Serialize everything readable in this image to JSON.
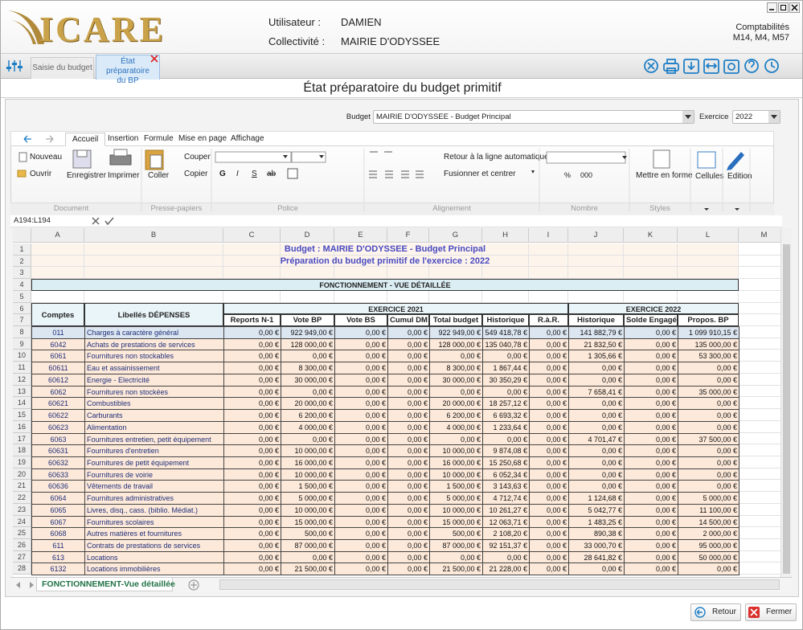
{
  "header": {
    "logo": "ICARE",
    "user_label": "Utilisateur :",
    "user": "DAMIEN",
    "collectivity_label": "Collectivité :",
    "collectivity": "MAIRIE D'ODYSSEE",
    "module_title": "Comptabilités",
    "module_versions": "M14, M4, M57"
  },
  "tabs": [
    "Saisie du budget",
    "État préparatoire du BP"
  ],
  "page_title": "État préparatoire du budget primitif",
  "budget": {
    "label": "Budget",
    "value": "MAIRIE D'ODYSSEE - Budget Principal",
    "exercise_label": "Exercice",
    "exercise": "2022"
  },
  "ribbon": {
    "tabs": [
      "Accueil",
      "Insertion",
      "Formule",
      "Mise en page",
      "Affichage"
    ],
    "active_tab": 0,
    "buttons": {
      "new": "Nouveau",
      "open": "Ouvrir",
      "save": "Enregistrer",
      "print": "Imprimer",
      "paste": "Coller",
      "cut": "Couper",
      "copy": "Copier",
      "bold": "G",
      "italic": "I",
      "underline": "S",
      "strike": "ab",
      "wrap": "Retour à la ligne automatique",
      "merge": "Fusionner et centrer",
      "percent": "%",
      "thousands": "000",
      "format": "Mettre en forme",
      "cells": "Cellules",
      "edit": "Edition"
    },
    "groups": [
      "Document",
      "Presse-papiers",
      "Police",
      "Alignement",
      "Nombre",
      "Styles"
    ]
  },
  "formula_bar": {
    "cell_ref": "A194:L194"
  },
  "sheet": {
    "columns": [
      "A",
      "B",
      "C",
      "D",
      "E",
      "F",
      "G",
      "H",
      "I",
      "J",
      "K",
      "L",
      "M"
    ],
    "row_numbers": [
      1,
      2,
      3,
      4,
      5,
      6,
      7,
      8,
      9,
      10,
      11,
      12,
      13,
      14,
      15,
      16,
      17,
      18,
      19,
      20,
      21,
      22,
      23,
      24,
      25,
      26,
      27,
      28
    ],
    "title": "Budget : MAIRIE D'ODYSSEE - Budget Principal",
    "subtitle": "Préparation du budget primitif de l'exercice : 2022",
    "section": "FONCTIONNEMENT - VUE DÉTAILLÉE",
    "header": {
      "accounts": "Comptes",
      "labels": "Libellés DÉPENSES",
      "year_1": "EXERCICE 2021",
      "year_2": "EXERCICE 2022",
      "columns": [
        "Reports N-1",
        "Vote BP",
        "Vote BS",
        "Cumul DM",
        "Total budget",
        "Historique",
        "R.à.R.",
        "Historique",
        "Solde Engagé",
        "Propos. BP"
      ]
    },
    "rows": [
      [
        "011",
        "Charges à caractère général",
        "0,00 €",
        "922 949,00 €",
        "0,00 €",
        "0,00 €",
        "922 949,00 €",
        "549 418,78 €",
        "0,00 €",
        "141 882,79 €",
        "0,00 €",
        "1 099 910,15 €"
      ],
      [
        "6042",
        "Achats de prestations de services",
        "0,00 €",
        "128 000,00 €",
        "0,00 €",
        "0,00 €",
        "128 000,00 €",
        "135 040,78 €",
        "0,00 €",
        "21 832,50 €",
        "0,00 €",
        "135 000,00 €"
      ],
      [
        "6061",
        "Fournitures non stockables",
        "0,00 €",
        "0,00 €",
        "0,00 €",
        "0,00 €",
        "0,00 €",
        "0,00 €",
        "0,00 €",
        "1 305,66 €",
        "0,00 €",
        "53 300,00 €"
      ],
      [
        "60611",
        "Eau et assainissement",
        "0,00 €",
        "8 300,00 €",
        "0,00 €",
        "0,00 €",
        "8 300,00 €",
        "1 867,44 €",
        "0,00 €",
        "0,00 €",
        "0,00 €",
        "0,00 €"
      ],
      [
        "60612",
        "Energie - Electricité",
        "0,00 €",
        "30 000,00 €",
        "0,00 €",
        "0,00 €",
        "30 000,00 €",
        "30 350,29 €",
        "0,00 €",
        "0,00 €",
        "0,00 €",
        "0,00 €"
      ],
      [
        "6062",
        "Fournitures non stockées",
        "0,00 €",
        "0,00 €",
        "0,00 €",
        "0,00 €",
        "0,00 €",
        "0,00 €",
        "0,00 €",
        "7 658,41 €",
        "0,00 €",
        "35 000,00 €"
      ],
      [
        "60621",
        "Combustibles",
        "0,00 €",
        "20 000,00 €",
        "0,00 €",
        "0,00 €",
        "20 000,00 €",
        "18 257,12 €",
        "0,00 €",
        "0,00 €",
        "0,00 €",
        "0,00 €"
      ],
      [
        "60622",
        "Carburants",
        "0,00 €",
        "6 200,00 €",
        "0,00 €",
        "0,00 €",
        "6 200,00 €",
        "6 693,32 €",
        "0,00 €",
        "0,00 €",
        "0,00 €",
        "0,00 €"
      ],
      [
        "60623",
        "Alimentation",
        "0,00 €",
        "4 000,00 €",
        "0,00 €",
        "0,00 €",
        "4 000,00 €",
        "1 233,64 €",
        "0,00 €",
        "0,00 €",
        "0,00 €",
        "0,00 €"
      ],
      [
        "6063",
        "Fournitures entretien, petit équipement",
        "0,00 €",
        "0,00 €",
        "0,00 €",
        "0,00 €",
        "0,00 €",
        "0,00 €",
        "0,00 €",
        "4 701,47 €",
        "0,00 €",
        "37 500,00 €"
      ],
      [
        "60631",
        "Fournitures d'entretien",
        "0,00 €",
        "10 000,00 €",
        "0,00 €",
        "0,00 €",
        "10 000,00 €",
        "9 874,08 €",
        "0,00 €",
        "0,00 €",
        "0,00 €",
        "0,00 €"
      ],
      [
        "60632",
        "Fournitures de petit équipement",
        "0,00 €",
        "16 000,00 €",
        "0,00 €",
        "0,00 €",
        "16 000,00 €",
        "15 250,68 €",
        "0,00 €",
        "0,00 €",
        "0,00 €",
        "0,00 €"
      ],
      [
        "60633",
        "Fournitures de voirie",
        "0,00 €",
        "10 000,00 €",
        "0,00 €",
        "0,00 €",
        "10 000,00 €",
        "6 052,34 €",
        "0,00 €",
        "0,00 €",
        "0,00 €",
        "0,00 €"
      ],
      [
        "60636",
        "Vêtements de travail",
        "0,00 €",
        "1 500,00 €",
        "0,00 €",
        "0,00 €",
        "1 500,00 €",
        "3 143,63 €",
        "0,00 €",
        "0,00 €",
        "0,00 €",
        "0,00 €"
      ],
      [
        "6064",
        "Fournitures administratives",
        "0,00 €",
        "5 000,00 €",
        "0,00 €",
        "0,00 €",
        "5 000,00 €",
        "4 712,74 €",
        "0,00 €",
        "1 124,68 €",
        "0,00 €",
        "5 000,00 €"
      ],
      [
        "6065",
        "Livres, disq., cass. (biblio. Médiat.)",
        "0,00 €",
        "10 000,00 €",
        "0,00 €",
        "0,00 €",
        "10 000,00 €",
        "10 261,27 €",
        "0,00 €",
        "5 042,77 €",
        "0,00 €",
        "11 100,00 €"
      ],
      [
        "6067",
        "Fournitures scolaires",
        "0,00 €",
        "15 000,00 €",
        "0,00 €",
        "0,00 €",
        "15 000,00 €",
        "12 063,71 €",
        "0,00 €",
        "1 483,25 €",
        "0,00 €",
        "14 500,00 €"
      ],
      [
        "6068",
        "Autres matières et fournitures",
        "0,00 €",
        "500,00 €",
        "0,00 €",
        "0,00 €",
        "500,00 €",
        "2 108,20 €",
        "0,00 €",
        "890,38 €",
        "0,00 €",
        "2 000,00 €"
      ],
      [
        "611",
        "Contrats de prestations de services",
        "0,00 €",
        "87 000,00 €",
        "0,00 €",
        "0,00 €",
        "87 000,00 €",
        "92 151,37 €",
        "0,00 €",
        "33 000,70 €",
        "0,00 €",
        "95 000,00 €"
      ],
      [
        "613",
        "Locations",
        "0,00 €",
        "0,00 €",
        "0,00 €",
        "0,00 €",
        "0,00 €",
        "0,00 €",
        "0,00 €",
        "28 641,82 €",
        "0,00 €",
        "50 000,00 €"
      ],
      [
        "6132",
        "Locations immobilières",
        "0,00 €",
        "21 500,00 €",
        "0,00 €",
        "0,00 €",
        "21 500,00 €",
        "21 228,00 €",
        "0,00 €",
        "0,00 €",
        "0,00 €",
        "0,00 €"
      ]
    ]
  },
  "sheet_tab": "FONCTIONNEMENT-Vue détaillée",
  "footer": {
    "back": "Retour",
    "close": "Fermer"
  }
}
